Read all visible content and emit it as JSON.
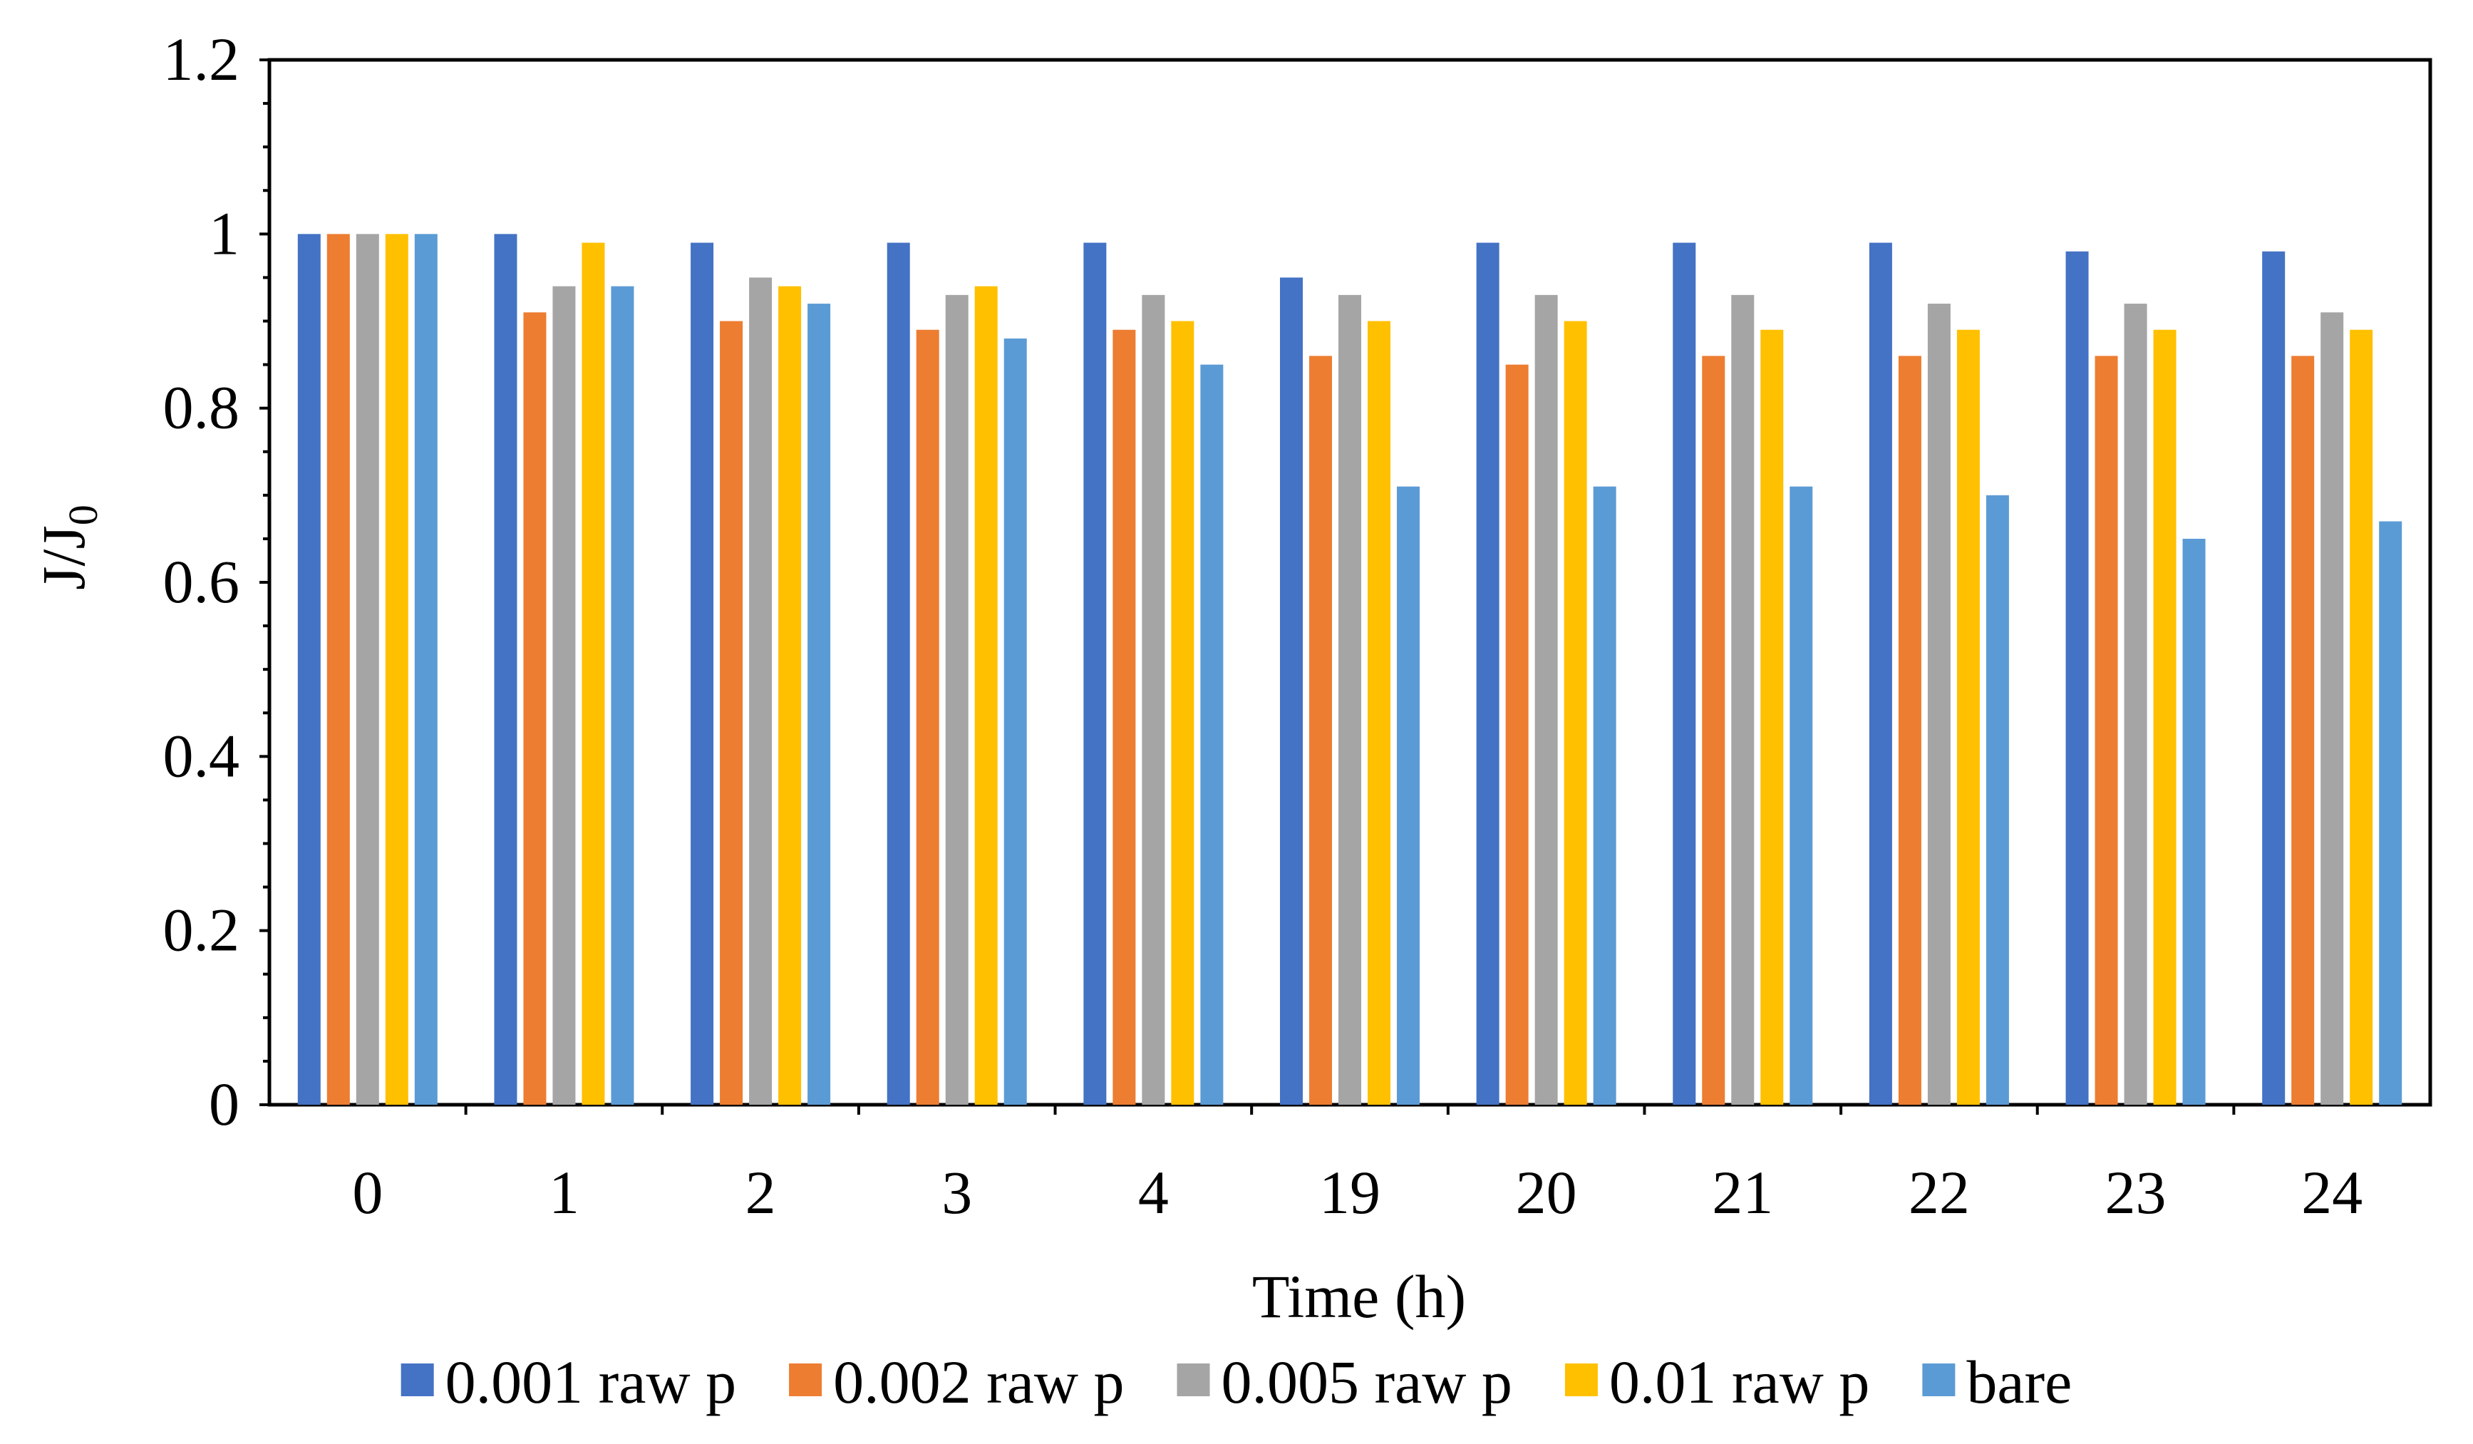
{
  "chart_data": {
    "type": "bar",
    "title": "",
    "xlabel": "Time (h)",
    "ylabel_main": "J/J",
    "ylabel_sub": "0",
    "ylim": [
      0,
      1.2
    ],
    "yticks": [
      0,
      0.2,
      0.4,
      0.6,
      0.8,
      1,
      1.2
    ],
    "ytick_labels": [
      "0",
      "0.2",
      "0.4",
      "0.6",
      "0.8",
      "1",
      "1.2"
    ],
    "categories": [
      "0",
      "1",
      "2",
      "3",
      "4",
      "19",
      "20",
      "21",
      "22",
      "23",
      "24"
    ],
    "legend_position": "bottom",
    "series": [
      {
        "name": "0.001 raw p",
        "color": "#4472C4",
        "values": [
          1.0,
          1.0,
          0.99,
          0.99,
          0.99,
          0.95,
          0.99,
          0.99,
          0.99,
          0.98,
          0.98
        ]
      },
      {
        "name": "0.002 raw p",
        "color": "#ED7D31",
        "values": [
          1.0,
          0.91,
          0.9,
          0.89,
          0.89,
          0.86,
          0.85,
          0.86,
          0.86,
          0.86,
          0.86
        ]
      },
      {
        "name": "0.005 raw p",
        "color": "#A5A5A5",
        "values": [
          1.0,
          0.94,
          0.95,
          0.93,
          0.93,
          0.93,
          0.93,
          0.93,
          0.92,
          0.92,
          0.91
        ]
      },
      {
        "name": "0.01 raw p",
        "color": "#FFC000",
        "values": [
          1.0,
          0.99,
          0.94,
          0.94,
          0.9,
          0.9,
          0.9,
          0.89,
          0.89,
          0.89,
          0.89
        ]
      },
      {
        "name": "bare",
        "color": "#5B9BD5",
        "values": [
          1.0,
          0.94,
          0.92,
          0.88,
          0.85,
          0.71,
          0.71,
          0.71,
          0.7,
          0.65,
          0.67
        ]
      }
    ]
  }
}
